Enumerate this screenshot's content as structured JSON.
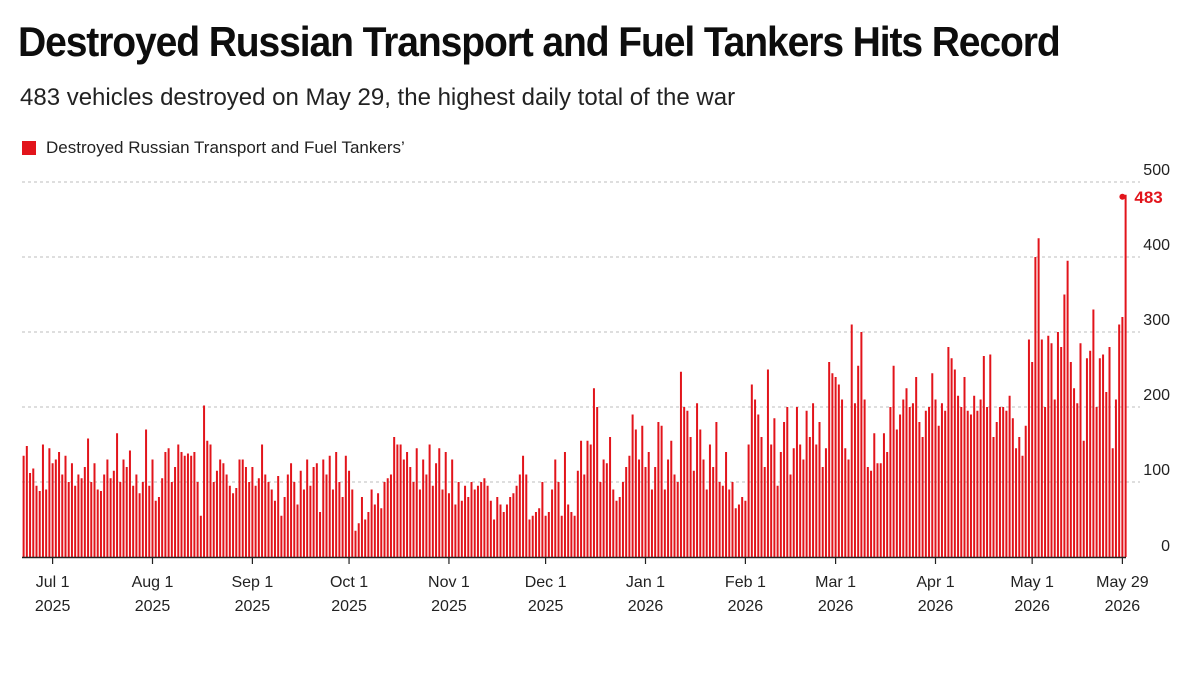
{
  "header": {
    "title": "Destroyed Russian Transport and Fuel Tankers Hits Record",
    "subtitle": "483 vehicles destroyed on May 29, the highest daily total of the war"
  },
  "colors": {
    "bar": "#e2141b",
    "grid": "#bdbdbd",
    "axis": "#222222"
  },
  "chart_data": {
    "type": "bar",
    "legend": [
      "Destroyed Russian Transport and Fuel Tankers’"
    ],
    "legend_position": "top-left",
    "grid": true,
    "ylim": [
      0,
      500
    ],
    "y_ticks": [
      "0",
      "100",
      "200",
      "300",
      "400",
      "500"
    ],
    "x_range": [
      "2025-06-22",
      "2026-05-29"
    ],
    "x_ticks": [
      {
        "date": "2025-07-01",
        "line1": "Jul 1",
        "line2": "2025"
      },
      {
        "date": "2025-08-01",
        "line1": "Aug 1",
        "line2": "2025"
      },
      {
        "date": "2025-09-01",
        "line1": "Sep 1",
        "line2": "2025"
      },
      {
        "date": "2025-10-01",
        "line1": "Oct 1",
        "line2": "2025"
      },
      {
        "date": "2025-11-01",
        "line1": "Nov 1",
        "line2": "2025"
      },
      {
        "date": "2025-12-01",
        "line1": "Dec 1",
        "line2": "2025"
      },
      {
        "date": "2026-01-01",
        "line1": "Jan 1",
        "line2": "2026"
      },
      {
        "date": "2026-02-01",
        "line1": "Feb 1",
        "line2": "2026"
      },
      {
        "date": "2026-03-01",
        "line1": "Mar 1",
        "line2": "2026"
      },
      {
        "date": "2026-04-01",
        "line1": "Apr 1",
        "line2": "2026"
      },
      {
        "date": "2026-05-01",
        "line1": "May 1",
        "line2": "2026"
      },
      {
        "date": "2026-05-29",
        "line1": "May 29",
        "line2": "2026"
      }
    ],
    "peak": {
      "date": "2026-05-29",
      "value": 483,
      "label": "483"
    },
    "series": [
      {
        "name": "Destroyed Russian Transport and Fuel Tankers’",
        "weekly_values": [
          {
            "start": "2025-06-22",
            "values": [
              135,
              148,
              112,
              118,
              95,
              88,
              150
            ]
          },
          {
            "start": "2025-06-29",
            "values": [
              90,
              145,
              125,
              130,
              140,
              110,
              135
            ]
          },
          {
            "start": "2025-07-06",
            "values": [
              100,
              125,
              95,
              110,
              105,
              120,
              158
            ]
          },
          {
            "start": "2025-07-13",
            "values": [
              100,
              125,
              90,
              88,
              110,
              130,
              105
            ]
          },
          {
            "start": "2025-07-20",
            "values": [
              115,
              165,
              100,
              130,
              120,
              142,
              95
            ]
          },
          {
            "start": "2025-07-27",
            "values": [
              110,
              85,
              100,
              170,
              95,
              130,
              75
            ]
          },
          {
            "start": "2025-08-03",
            "values": [
              80,
              105,
              140,
              145,
              100,
              120,
              150
            ]
          },
          {
            "start": "2025-08-10",
            "values": [
              140,
              135,
              138,
              135,
              140,
              100,
              55
            ]
          },
          {
            "start": "2025-08-17",
            "values": [
              202,
              155,
              150,
              100,
              115,
              130,
              125
            ]
          },
          {
            "start": "2025-08-24",
            "values": [
              110,
              95,
              85,
              92,
              130,
              130,
              120
            ]
          },
          {
            "start": "2025-08-31",
            "values": [
              100,
              120,
              95,
              105,
              150,
              110,
              100
            ]
          },
          {
            "start": "2025-09-07",
            "values": [
              90,
              75,
              108,
              55,
              80,
              110,
              125
            ]
          },
          {
            "start": "2025-09-14",
            "values": [
              100,
              70,
              115,
              90,
              130,
              95,
              120
            ]
          },
          {
            "start": "2025-09-21",
            "values": [
              125,
              60,
              130,
              110,
              135,
              90,
              140
            ]
          },
          {
            "start": "2025-09-28",
            "values": [
              100,
              80,
              135,
              115,
              90,
              35,
              45
            ]
          },
          {
            "start": "2025-10-05",
            "values": [
              80,
              50,
              60,
              90,
              70,
              85,
              65
            ]
          },
          {
            "start": "2025-10-12",
            "values": [
              100,
              105,
              110,
              160,
              150,
              150,
              130
            ]
          },
          {
            "start": "2025-10-19",
            "values": [
              140,
              120,
              100,
              145,
              90,
              130,
              110
            ]
          },
          {
            "start": "2025-10-26",
            "values": [
              150,
              95,
              125,
              145,
              90,
              140,
              85
            ]
          },
          {
            "start": "2025-11-02",
            "values": [
              130,
              70,
              100,
              75,
              95,
              80,
              100
            ]
          },
          {
            "start": "2025-11-09",
            "values": [
              90,
              95,
              100,
              105,
              95,
              75,
              50
            ]
          },
          {
            "start": "2025-11-16",
            "values": [
              80,
              70,
              60,
              70,
              80,
              85,
              95
            ]
          },
          {
            "start": "2025-11-23",
            "values": [
              110,
              135,
              110,
              50,
              55,
              60,
              65
            ]
          },
          {
            "start": "2025-11-30",
            "values": [
              100,
              55,
              60,
              90,
              130,
              100,
              55
            ]
          },
          {
            "start": "2025-12-07",
            "values": [
              140,
              70,
              60,
              55,
              115,
              155,
              110
            ]
          },
          {
            "start": "2025-12-14",
            "values": [
              155,
              150,
              225,
              200,
              100,
              130,
              125
            ]
          },
          {
            "start": "2025-12-21",
            "values": [
              160,
              90,
              75,
              80,
              100,
              120,
              135
            ]
          },
          {
            "start": "2025-12-28",
            "values": [
              190,
              170,
              130,
              175,
              120,
              140,
              90
            ]
          },
          {
            "start": "2026-01-04",
            "values": [
              120,
              180,
              175,
              90,
              130,
              155,
              110
            ]
          },
          {
            "start": "2026-01-11",
            "values": [
              100,
              247,
              200,
              195,
              160,
              115,
              205
            ]
          },
          {
            "start": "2026-01-18",
            "values": [
              170,
              130,
              90,
              150,
              120,
              180,
              100
            ]
          },
          {
            "start": "2026-01-25",
            "values": [
              95,
              140,
              90,
              100,
              65,
              70,
              80
            ]
          },
          {
            "start": "2026-02-01",
            "values": [
              75,
              150,
              230,
              210,
              190,
              160,
              120
            ]
          },
          {
            "start": "2026-02-08",
            "values": [
              250,
              150,
              185,
              95,
              140,
              180,
              200
            ]
          },
          {
            "start": "2026-02-15",
            "values": [
              110,
              145,
              200,
              150,
              130,
              195,
              160
            ]
          },
          {
            "start": "2026-02-22",
            "values": [
              205,
              150,
              180,
              120,
              145,
              260,
              245
            ]
          },
          {
            "start": "2026-03-01",
            "values": [
              240,
              230,
              210,
              145,
              130,
              310,
              205
            ]
          },
          {
            "start": "2026-03-08",
            "values": [
              255,
              300,
              210,
              120,
              115,
              165,
              125
            ]
          },
          {
            "start": "2026-03-15",
            "values": [
              125,
              165,
              140,
              200,
              255,
              170,
              190
            ]
          },
          {
            "start": "2026-03-22",
            "values": [
              210,
              225,
              200,
              205,
              240,
              180,
              160
            ]
          },
          {
            "start": "2026-03-29",
            "values": [
              195,
              200,
              245,
              210,
              175,
              205,
              195
            ]
          },
          {
            "start": "2026-04-05",
            "values": [
              280,
              265,
              250,
              215,
              200,
              240,
              195
            ]
          },
          {
            "start": "2026-04-12",
            "values": [
              190,
              215,
              195,
              210,
              268,
              200,
              270
            ]
          },
          {
            "start": "2026-04-19",
            "values": [
              160,
              180,
              200,
              200,
              195,
              215,
              185
            ]
          },
          {
            "start": "2026-04-26",
            "values": [
              145,
              160,
              135,
              175,
              290,
              260,
              400
            ]
          },
          {
            "start": "2026-05-03",
            "values": [
              425,
              290,
              200,
              295,
              285,
              210,
              300
            ]
          },
          {
            "start": "2026-05-10",
            "values": [
              280,
              350,
              395,
              260,
              225,
              205,
              285
            ]
          },
          {
            "start": "2026-05-17",
            "values": [
              155,
              265,
              275,
              330,
              200,
              265,
              270
            ]
          },
          {
            "start": "2026-05-24",
            "values": [
              220,
              280,
              145,
              210,
              310,
              320,
              483
            ]
          }
        ]
      }
    ]
  }
}
